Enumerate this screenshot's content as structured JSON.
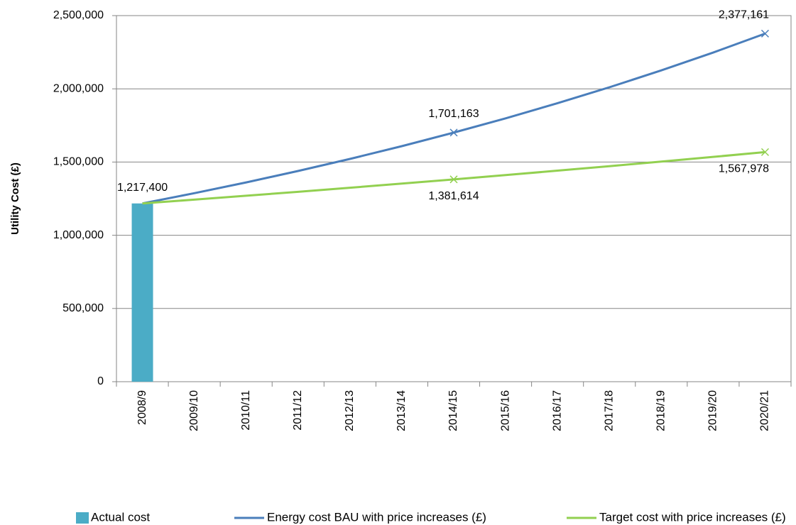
{
  "chart_data": {
    "type": "bar-line",
    "y_label": "Utility Cost (£)",
    "categories": [
      "2008/9",
      "2009/10",
      "2010/11",
      "2011/12",
      "2012/13",
      "2013/14",
      "2014/15",
      "2015/16",
      "2016/17",
      "2017/18",
      "2018/19",
      "2019/20",
      "2020/21"
    ],
    "series": [
      {
        "name": "Actual cost",
        "type": "bar",
        "color": "#4bacc6",
        "values": [
          1217400,
          null,
          null,
          null,
          null,
          null,
          null,
          null,
          null,
          null,
          null,
          null,
          null
        ],
        "value_labels": [
          "1,217,400",
          null,
          null,
          null,
          null,
          null,
          null,
          null,
          null,
          null,
          null,
          null,
          null
        ]
      },
      {
        "name": "Energy cost BAU with price increases (£)",
        "type": "line",
        "color": "#4a7ebb",
        "values": [
          1217400,
          1287150,
          1360900,
          1438880,
          1521330,
          1608500,
          1701163,
          1798640,
          1901700,
          2010670,
          2125880,
          2247690,
          2377161
        ],
        "value_labels": [
          null,
          null,
          null,
          null,
          null,
          null,
          "1,701,163",
          null,
          null,
          null,
          null,
          null,
          "2,377,161"
        ]
      },
      {
        "name": "Target cost with price increases (£)",
        "type": "line",
        "color": "#92d050",
        "values": [
          1217400,
          1243330,
          1269810,
          1296860,
          1324480,
          1352690,
          1381614,
          1411040,
          1441100,
          1471790,
          1503140,
          1535160,
          1567978
        ],
        "value_labels": [
          null,
          null,
          null,
          null,
          null,
          null,
          "1,381,614",
          null,
          null,
          null,
          null,
          null,
          "1,567,978"
        ]
      }
    ],
    "ylim": [
      0,
      2500000
    ],
    "yticks": [
      0,
      {
        "value": 500000,
        "label": "500,000"
      },
      {
        "value": 1000000,
        "label": "1,000,000"
      },
      {
        "value": 1500000,
        "label": "1,500,000"
      },
      {
        "value": 2000000,
        "label": "2,000,000"
      },
      {
        "value": 2500000,
        "label": "2,500,000"
      }
    ],
    "grid": true,
    "legend": "bottom"
  }
}
